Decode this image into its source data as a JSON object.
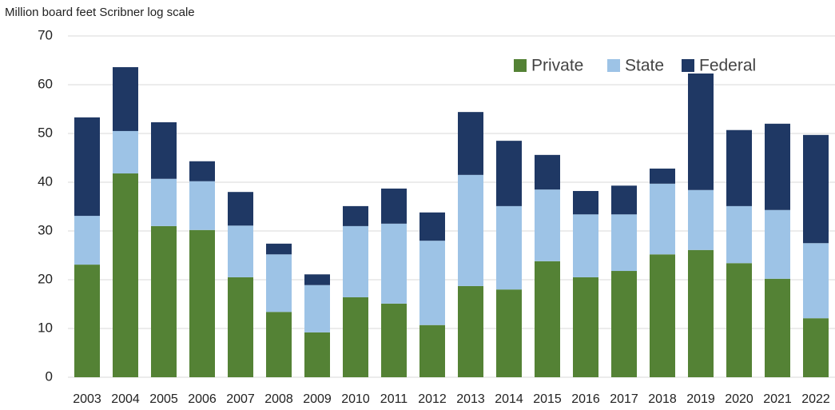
{
  "chart_data": {
    "type": "stacked_bar",
    "y_axis_label": "Million board feet Scribner log scale",
    "categories": [
      "2003",
      "2004",
      "2005",
      "2006",
      "2007",
      "2008",
      "2009",
      "2010",
      "2011",
      "2012",
      "2013",
      "2014",
      "2015",
      "2016",
      "2017",
      "2018",
      "2019",
      "2020",
      "2021",
      "2022"
    ],
    "series": [
      {
        "name": "Private",
        "color": "#548235",
        "values": [
          23.1,
          41.8,
          31.0,
          30.2,
          20.5,
          13.4,
          9.2,
          16.4,
          15.1,
          10.7,
          18.7,
          18.0,
          23.8,
          20.5,
          21.8,
          25.2,
          26.1,
          23.4,
          20.2,
          12.1
        ]
      },
      {
        "name": "State",
        "color": "#9dc3e6",
        "values": [
          10.0,
          8.7,
          9.7,
          10.0,
          10.6,
          11.8,
          9.7,
          14.6,
          16.4,
          17.3,
          22.8,
          17.1,
          14.7,
          12.9,
          11.6,
          14.5,
          12.3,
          11.7,
          14.1,
          15.4
        ]
      },
      {
        "name": "Federal",
        "color": "#1f3864",
        "values": [
          20.2,
          13.1,
          11.6,
          4.1,
          6.9,
          2.2,
          2.2,
          4.1,
          7.2,
          5.8,
          12.9,
          13.4,
          7.1,
          4.8,
          5.9,
          3.1,
          23.9,
          15.6,
          17.7,
          22.2
        ]
      }
    ],
    "ylim": [
      0,
      70
    ],
    "yticks": [
      0,
      10,
      20,
      30,
      40,
      50,
      60,
      70
    ],
    "grid": true,
    "legend": "top-right"
  }
}
